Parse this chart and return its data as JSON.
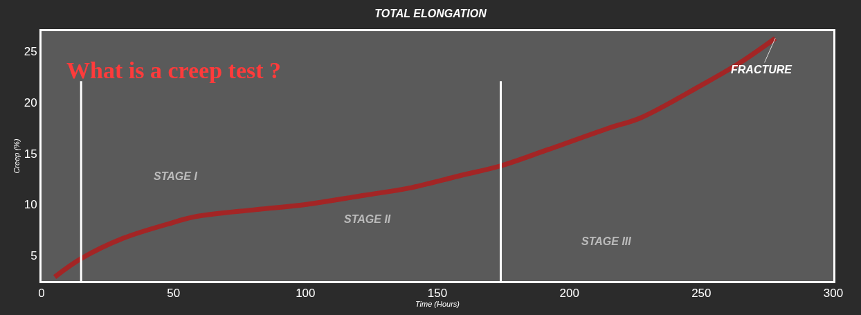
{
  "chart_data": {
    "type": "line",
    "title": "TOTAL ELONGATION",
    "xlabel": "Time (Hours)",
    "ylabel": "Creep (%)",
    "x": [
      5,
      15,
      31,
      48,
      58,
      81,
      100,
      122,
      139,
      158,
      174,
      192,
      215,
      227,
      250,
      264,
      278
    ],
    "series": [
      {
        "color": "#b01c1c",
        "values": [
          2.9,
          4.7,
          6.7,
          8.1,
          8.8,
          9.5,
          10,
          10.9,
          11.6,
          12.8,
          13.8,
          15.4,
          17.5,
          18.5,
          21.7,
          23.8,
          26.3
        ]
      }
    ],
    "xlim": [
      0,
      300
    ],
    "xticks": [
      0,
      50,
      100,
      150,
      200,
      250,
      300
    ],
    "ylim": [
      2.5,
      27
    ],
    "yticks": [
      5,
      10,
      15,
      20,
      25
    ],
    "grid": false,
    "marker": "none",
    "line_style": "solid",
    "ref_lines": [
      {
        "axis": "x",
        "value": 15,
        "color": "#ffffff"
      },
      {
        "axis": "x",
        "value": 174,
        "color": "#ffffff"
      }
    ],
    "annotations": [
      "What is a creep test ?",
      "STAGE I",
      "STAGE II",
      "STAGE III",
      {
        "text": "FRACTURE",
        "x": 278,
        "y": 26.3
      }
    ]
  }
}
